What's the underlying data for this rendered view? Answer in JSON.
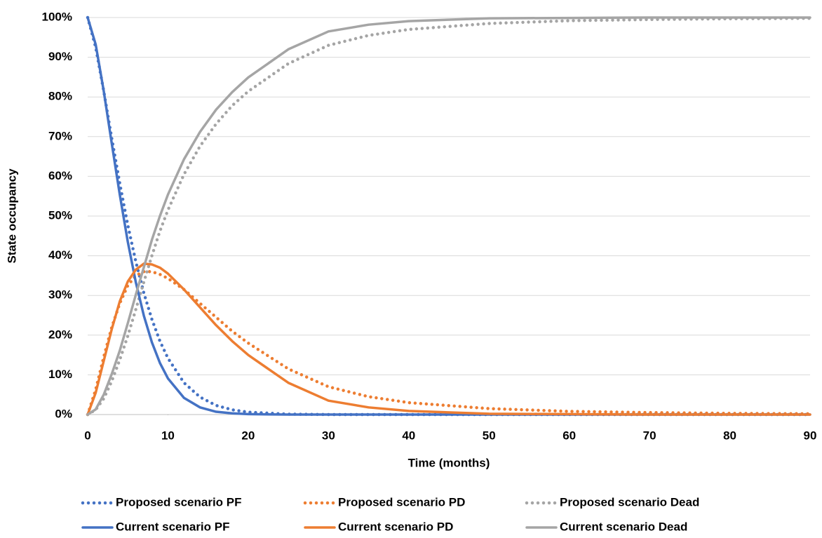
{
  "chart_data": {
    "type": "line",
    "y_label": "State occupancy",
    "x_label": "Time (months)",
    "x": [
      0,
      1,
      2,
      3,
      4,
      5,
      6,
      7,
      8,
      9,
      10,
      12,
      14,
      16,
      18,
      20,
      25,
      30,
      35,
      40,
      50,
      60,
      70,
      80,
      90
    ],
    "series": [
      {
        "name": "Proposed scenario PF",
        "color": "#4472c4",
        "style": "dotted",
        "values": [
          100,
          92.5,
          81.5,
          69.6,
          58.2,
          47.7,
          38.5,
          30.6,
          24,
          18.5,
          14.2,
          8,
          4.4,
          2.3,
          1.2,
          0.6,
          0.1,
          0,
          0,
          0,
          0,
          0,
          0,
          0,
          0
        ]
      },
      {
        "name": "Proposed scenario PD",
        "color": "#ed7d31",
        "style": "dotted",
        "values": [
          0,
          6.3,
          14.5,
          22,
          28,
          32.5,
          35,
          36,
          36,
          35.3,
          34.3,
          31.5,
          28,
          24.5,
          21,
          18,
          11.5,
          7,
          4.5,
          3,
          1.5,
          0.8,
          0.5,
          0.3,
          0.2
        ]
      },
      {
        "name": "Proposed scenario Dead",
        "color": "#a5a5a5",
        "style": "dotted",
        "values": [
          0,
          1.2,
          4,
          8.4,
          13.8,
          19.8,
          26.5,
          33.4,
          40,
          46.2,
          51.5,
          60.5,
          67.6,
          73.2,
          77.8,
          81.4,
          88.4,
          93,
          95.5,
          97,
          98.5,
          99.2,
          99.5,
          99.7,
          99.8
        ]
      },
      {
        "name": "Current scenario PF",
        "color": "#4472c4",
        "style": "solid",
        "values": [
          100,
          93.2,
          81.5,
          68.3,
          55.4,
          43.5,
          33.3,
          24.9,
          18.2,
          13,
          9.1,
          4.2,
          1.8,
          0.7,
          0.3,
          0.1,
          0,
          0,
          0,
          0,
          0,
          0,
          0,
          0,
          0
        ]
      },
      {
        "name": "Current scenario PD",
        "color": "#ed7d31",
        "style": "solid",
        "values": [
          0,
          5.5,
          13.5,
          21.5,
          28.5,
          33.5,
          36.5,
          38,
          37.8,
          37,
          35.5,
          31.5,
          27,
          22.5,
          18.5,
          15,
          8,
          3.5,
          1.8,
          0.9,
          0.2,
          0.1,
          0,
          0,
          0
        ]
      },
      {
        "name": "Current scenario Dead",
        "color": "#a5a5a5",
        "style": "solid",
        "values": [
          0,
          1.3,
          5,
          10.2,
          16.1,
          23,
          30.2,
          37.1,
          44,
          50,
          55.4,
          64.3,
          71.2,
          76.8,
          81.2,
          84.9,
          92,
          96.5,
          98.2,
          99.1,
          99.8,
          99.9,
          100,
          100,
          100
        ]
      }
    ],
    "xlim": [
      0,
      90
    ],
    "xticks": [
      0,
      10,
      20,
      30,
      40,
      50,
      60,
      70,
      80,
      90
    ],
    "ylim": [
      0,
      100
    ],
    "yticks": [
      {
        "value": 0,
        "label": "0%"
      },
      {
        "value": 10,
        "label": "10%"
      },
      {
        "value": 20,
        "label": "20%"
      },
      {
        "value": 30,
        "label": "30%"
      },
      {
        "value": 40,
        "label": "40%"
      },
      {
        "value": 50,
        "label": "50%"
      },
      {
        "value": 60,
        "label": "60%"
      },
      {
        "value": 70,
        "label": "70%"
      },
      {
        "value": 80,
        "label": "80%"
      },
      {
        "value": 90,
        "label": "90%"
      },
      {
        "value": 100,
        "label": "100%"
      }
    ],
    "grid": true,
    "legend": "bottom"
  }
}
